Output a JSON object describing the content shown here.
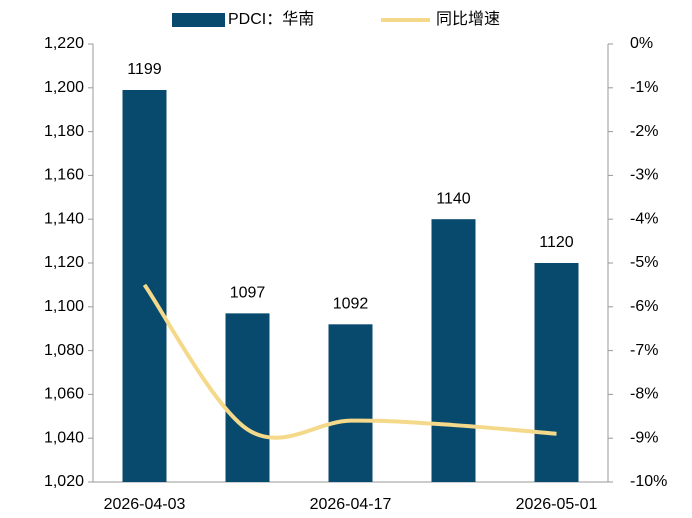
{
  "chart_data": {
    "type": "bar",
    "categories": [
      "2026-04-03",
      null,
      "2026-04-17",
      null,
      "2026-05-01"
    ],
    "series": [
      {
        "name": "PDCI：华南",
        "type": "bar",
        "color": "#084a6e",
        "values": [
          1199,
          1097,
          1092,
          1140,
          1120
        ]
      },
      {
        "name": "同比增速",
        "type": "line",
        "axis": "y2",
        "color": "#f5d98a",
        "values": [
          -5.5,
          -8.8,
          -8.6,
          -8.7,
          -8.9
        ]
      }
    ],
    "ylim": [
      1020,
      1220
    ],
    "yticks": [
      {
        "value": 1020,
        "label": "1,020"
      },
      {
        "value": 1040,
        "label": "1,040"
      },
      {
        "value": 1060,
        "label": "1,060"
      },
      {
        "value": 1080,
        "label": "1,080"
      },
      {
        "value": 1100,
        "label": "1,100"
      },
      {
        "value": 1120,
        "label": "1,120"
      },
      {
        "value": 1140,
        "label": "1,140"
      },
      {
        "value": 1160,
        "label": "1,160"
      },
      {
        "value": 1180,
        "label": "1,180"
      },
      {
        "value": 1200,
        "label": "1,200"
      },
      {
        "value": 1220,
        "label": "1,220"
      }
    ],
    "y2lim": [
      -10,
      0
    ],
    "y2ticks": [
      {
        "value": 0,
        "label": "0%"
      },
      {
        "value": -1,
        "label": "-1%"
      },
      {
        "value": -2,
        "label": "-2%"
      },
      {
        "value": -3,
        "label": "-3%"
      },
      {
        "value": -4,
        "label": "-4%"
      },
      {
        "value": -5,
        "label": "-5%"
      },
      {
        "value": -6,
        "label": "-6%"
      },
      {
        "value": -7,
        "label": "-7%"
      },
      {
        "value": -8,
        "label": "-8%"
      },
      {
        "value": -9,
        "label": "-9%"
      },
      {
        "value": -10,
        "label": "-10%"
      }
    ],
    "grid": false,
    "legend": "top"
  }
}
